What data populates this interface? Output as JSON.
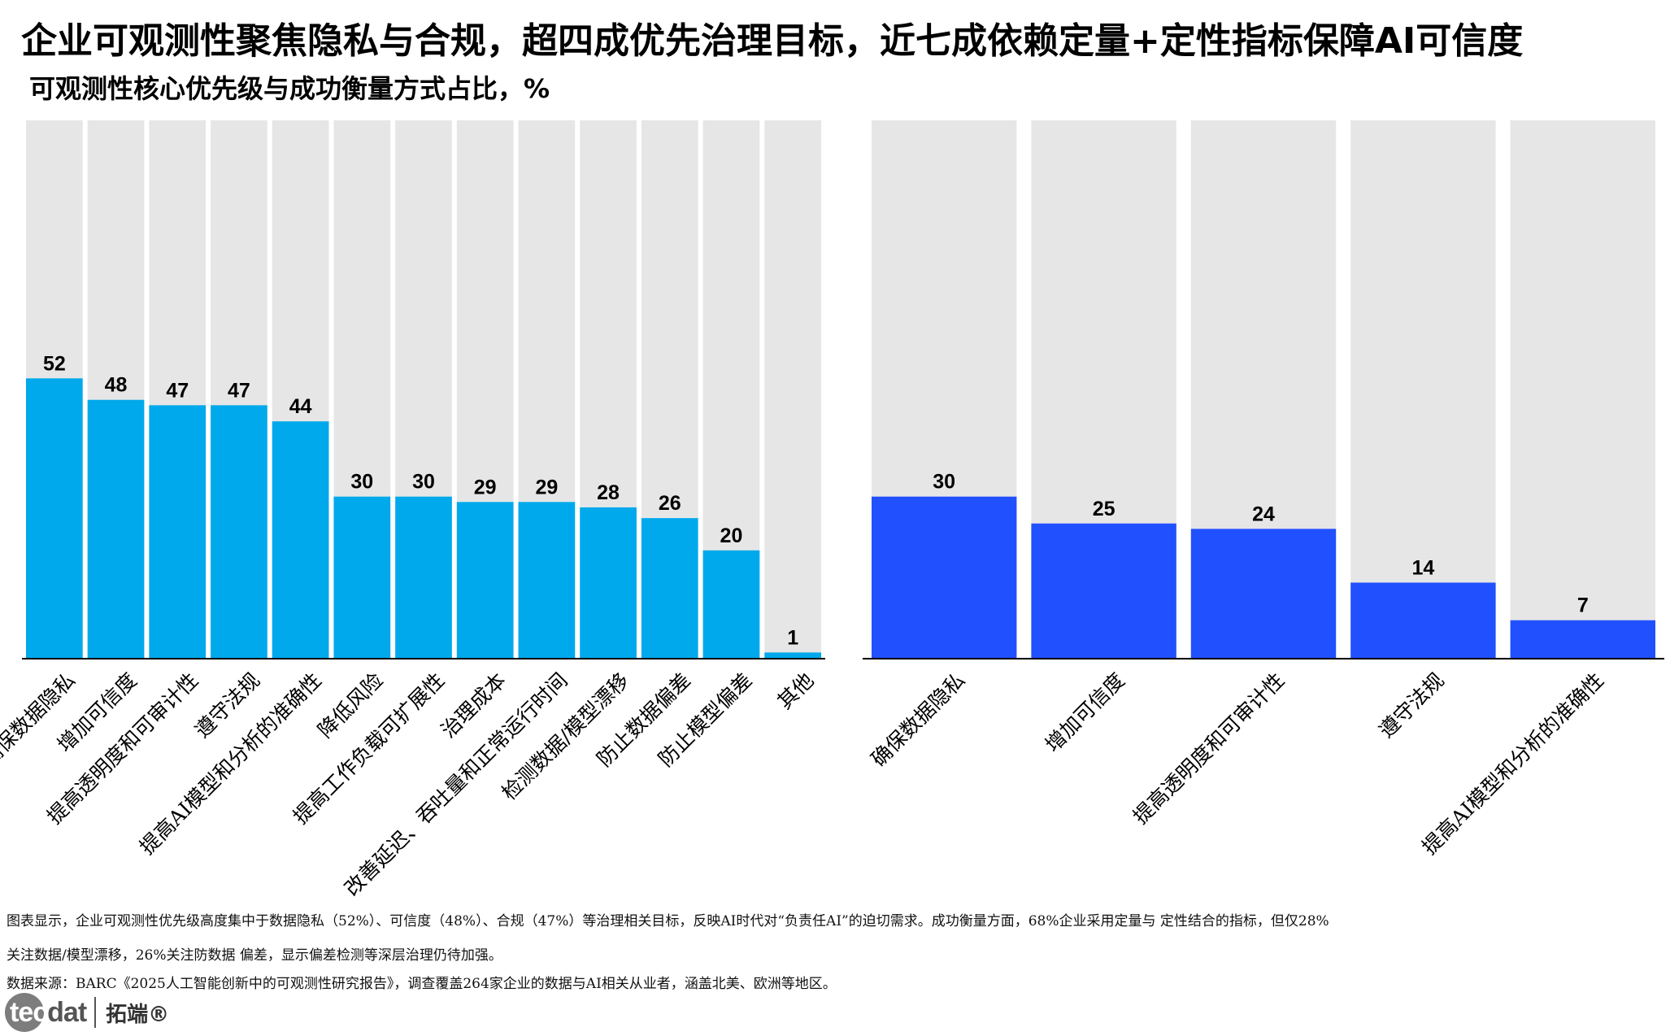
{
  "title": "企业可观测性聚焦隐私与合规，超四成优先治理目标，近七成依赖定量+定性指标保障AI可信度",
  "subtitle": "可观测性核心优先级与成功衡量方式占比，%",
  "colors": {
    "left_bar": "#00a9ec",
    "right_bar": "#2150ff",
    "background_bar": "#e6e6e6",
    "axis": "#000000"
  },
  "chart_data": [
    {
      "type": "bar",
      "ylim": [
        0,
        100
      ],
      "grid": false,
      "categories": [
        "确保数据隐私",
        "增加可信度",
        "提高透明度和可审计性",
        "遵守法规",
        "提高AI模型和分析的准确性",
        "降低风险",
        "提高工作负载可扩展性",
        "治理成本",
        "改善延迟、吞吐量和正常运行时间",
        "检测数据/模型漂移",
        "防止数据偏差",
        "防止模型偏差",
        "其他"
      ],
      "values": [
        52,
        48,
        47,
        47,
        44,
        30,
        30,
        29,
        29,
        28,
        26,
        20,
        1
      ]
    },
    {
      "type": "bar",
      "ylim": [
        0,
        100
      ],
      "grid": false,
      "categories": [
        "确保数据隐私",
        "增加可信度",
        "提高透明度和可审计性",
        "遵守法规",
        "提高AI模型和分析的准确性"
      ],
      "values": [
        30,
        25,
        24,
        14,
        7
      ]
    }
  ],
  "footnotes": [
    "图表显示，企业可观测性优先级高度集中于数据隐私（52%）、可信度（48%）、合规（47%）等治理相关目标，反映AI时代对“负责任AI”的迫切需求。成功衡量方面，68%企业采用定量与 定性结合的指标，但仅28%",
    "关注数据/模型漂移，26%关注防数据 偏差，显示偏差检测等深层治理仍待加强。",
    "数据来源：BARC《2025人工智能创新中的可观测性研究报告》，调查覆盖264家企业的数据与AI相关从业者，涵盖北美、欧洲等地区。"
  ],
  "logo": {
    "en_first": "tec",
    "en_rest": "dat",
    "cn": "拓端®"
  }
}
